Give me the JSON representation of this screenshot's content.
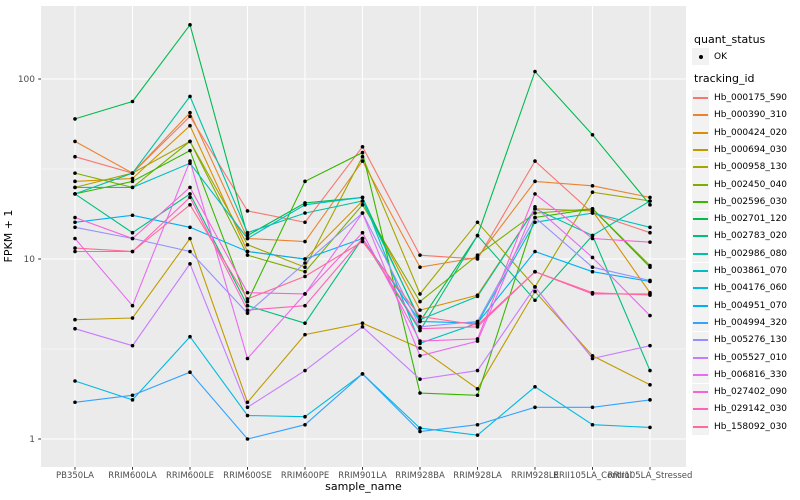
{
  "chart_data": {
    "type": "line",
    "title": "",
    "xlabel": "sample_name",
    "ylabel": "FPKM + 1",
    "y_scale": "log10",
    "y_ticks": [
      1,
      10,
      100
    ],
    "y_tick_labels": [
      "1",
      "10",
      "100"
    ],
    "y_minor_ticks": [
      3.162,
      31.62
    ],
    "ylim": [
      0.72,
      258
    ],
    "grid": true,
    "legend_position": "right",
    "panel_bg": "#EBEBEB",
    "grid_color": "#FFFFFF",
    "key_bg": "#F2F2F2",
    "point_color": "#000000",
    "tick_label_color": "#4D4D4D",
    "categories": [
      "PB350LA",
      "RRIM600LA",
      "RRIM600LE",
      "RRIM600SE",
      "RRIM600PE",
      "RRIM901LA",
      "RRIM928BA",
      "RRIM928LA",
      "RRIM928LE",
      "RRII105LA_Control",
      "RRII105LA_Stressed"
    ],
    "legend": {
      "quant_title": "quant_status",
      "quant_items": [
        {
          "label": "OK",
          "marker": "point"
        }
      ],
      "tracking_title": "tracking_id"
    },
    "series": [
      {
        "name": "Hb_000175_590",
        "color": "#F8766D",
        "values": [
          37,
          30,
          62,
          18.5,
          16,
          42,
          10.5,
          10,
          35,
          18,
          14
        ]
      },
      {
        "name": "Hb_000390_310",
        "color": "#EA8331",
        "values": [
          45,
          30,
          65,
          13,
          12.5,
          35,
          9,
          10.2,
          27,
          25.5,
          22
        ]
      },
      {
        "name": "Hb_000424_020",
        "color": "#D89000",
        "values": [
          27,
          28,
          55,
          11,
          10,
          21,
          5.2,
          6.3,
          19,
          18.5,
          6.5
        ]
      },
      {
        "name": "Hb_000694_030",
        "color": "#C09B00",
        "values": [
          4.6,
          4.7,
          13,
          1.6,
          3.8,
          4.4,
          3.2,
          1.9,
          6.6,
          2.9,
          2.0
        ]
      },
      {
        "name": "Hb_000958_130",
        "color": "#A3A500",
        "values": [
          25,
          30,
          45,
          12,
          9,
          37,
          6.4,
          16,
          7,
          23.5,
          21
        ]
      },
      {
        "name": "Hb_002450_040",
        "color": "#7CAE00",
        "values": [
          30,
          25,
          45,
          10.5,
          8.5,
          20,
          5.8,
          10.5,
          18,
          19,
          9.2
        ]
      },
      {
        "name": "Hb_002596_030",
        "color": "#39B600",
        "values": [
          23,
          27,
          40,
          5.8,
          27,
          39,
          1.8,
          1.75,
          17,
          19,
          9
        ]
      },
      {
        "name": "Hb_002701_120",
        "color": "#00BB4E",
        "values": [
          60,
          75,
          200,
          13.5,
          20.5,
          22,
          4.5,
          13.5,
          110,
          49,
          20
        ]
      },
      {
        "name": "Hb_002783_020",
        "color": "#00BF7D",
        "values": [
          23,
          14,
          23,
          5.5,
          4.4,
          13,
          4,
          13.5,
          5.9,
          13.5,
          2.4
        ]
      },
      {
        "name": "Hb_002986_080",
        "color": "#00C1A3",
        "values": [
          23,
          30,
          80,
          14,
          18,
          21,
          4.6,
          6.2,
          19,
          13.5,
          21
        ]
      },
      {
        "name": "Hb_003861_070",
        "color": "#00BFC4",
        "values": [
          25,
          25,
          34,
          13,
          20,
          22,
          3.4,
          4.4,
          16,
          18,
          15
        ]
      },
      {
        "name": "Hb_004176_060",
        "color": "#00BAE0",
        "values": [
          2.1,
          1.65,
          3.7,
          1.35,
          1.33,
          2.3,
          1.15,
          1.05,
          1.95,
          1.2,
          1.16
        ]
      },
      {
        "name": "Hb_004951_070",
        "color": "#00B0F6",
        "values": [
          16,
          17.5,
          15,
          11,
          10,
          13,
          4.5,
          4.4,
          11,
          8.5,
          7.5
        ]
      },
      {
        "name": "Hb_004994_320",
        "color": "#35A2FF",
        "values": [
          1.6,
          1.75,
          2.35,
          1.0,
          1.2,
          2.3,
          1.1,
          1.2,
          1.5,
          1.5,
          1.65
        ]
      },
      {
        "name": "Hb_005276_130",
        "color": "#9590FF",
        "values": [
          15,
          13,
          11,
          5.0,
          9.5,
          18,
          4.2,
          4.5,
          17,
          9,
          7.6
        ]
      },
      {
        "name": "Hb_005527_010",
        "color": "#C77CFF",
        "values": [
          4.1,
          3.3,
          9.4,
          1.5,
          2.4,
          4.2,
          2.15,
          2.4,
          7,
          2.8,
          3.3
        ]
      },
      {
        "name": "Hb_006816_330",
        "color": "#E76BF3",
        "values": [
          13,
          5.5,
          35,
          2.8,
          6.4,
          18,
          2.9,
          3.5,
          19.5,
          10.2,
          4.85
        ]
      },
      {
        "name": "Hb_027402_090",
        "color": "#FA62DB",
        "values": [
          17,
          13,
          25,
          6.5,
          6.4,
          14,
          3.5,
          3.6,
          23,
          13,
          12.4
        ]
      },
      {
        "name": "Hb_029142_030",
        "color": "#FF62BC",
        "values": [
          11,
          11,
          22,
          5.2,
          5.5,
          13,
          4.1,
          4.2,
          8.5,
          6.4,
          6.4
        ]
      },
      {
        "name": "Hb_158092_030",
        "color": "#FF6A98",
        "values": [
          11.5,
          11,
          20,
          6,
          8,
          12.5,
          4.8,
          4.3,
          8.5,
          6.5,
          6.3
        ]
      }
    ]
  }
}
